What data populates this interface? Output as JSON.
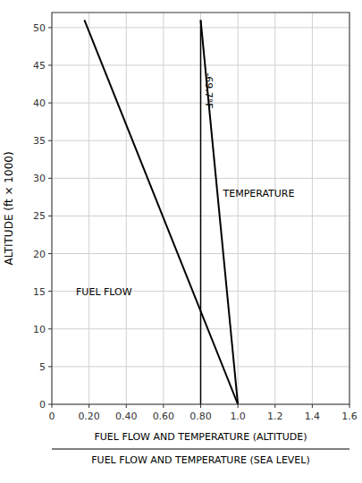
{
  "chart_data": {
    "type": "line",
    "ylabel": "ALTITUDE (ft × 1000)",
    "xlabel_top": "FUEL FLOW AND TEMPERATURE (ALTITUDE)",
    "xlabel_bottom": "FUEL FLOW AND TEMPERATURE (SEA LEVEL)",
    "xlim": [
      0,
      1.6
    ],
    "ylim": [
      0,
      52
    ],
    "xticks": [
      0,
      {
        "value": 0.2,
        "label": "0.20"
      },
      {
        "value": 0.4,
        "label": "0.40"
      },
      {
        "value": 0.6,
        "label": "0.60"
      },
      {
        "value": 0.8,
        "label": "0.80"
      },
      {
        "value": 1.0,
        "label": "1.0"
      },
      1.2,
      1.4,
      1.6
    ],
    "yticks": [
      0,
      5,
      10,
      15,
      20,
      25,
      30,
      35,
      40,
      45,
      50
    ],
    "grid": true,
    "series": [
      {
        "x": [
          0.175,
          1.0
        ],
        "values": [
          51,
          0
        ],
        "color": "#000000"
      },
      {
        "x": [
          0.8,
          1.0
        ],
        "values": [
          51,
          0
        ],
        "color": "#000000"
      }
    ],
    "reference_lines": [
      {
        "x": 0.8,
        "y": [
          0,
          51
        ],
        "color": "#000000",
        "label": "-69.7°F",
        "label_x": 0.815,
        "label_y": 44
      }
    ],
    "annotations": [
      {
        "text": "FUEL FLOW",
        "x": 0.13,
        "y": 15
      },
      {
        "text": "TEMPERATURE",
        "x": 0.92,
        "y": 28
      }
    ]
  }
}
